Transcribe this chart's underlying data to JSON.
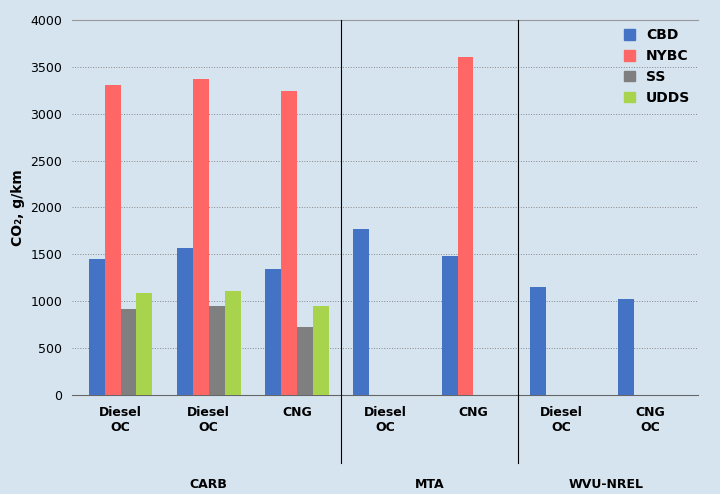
{
  "title": "",
  "ylabel": "CO₂, g/km",
  "ylim": [
    0,
    4000
  ],
  "yticks": [
    0,
    500,
    1000,
    1500,
    2000,
    2500,
    3000,
    3500,
    4000
  ],
  "groups": [
    {
      "label": "Diesel\nOC",
      "group": "CARB"
    },
    {
      "label": "Diesel\nOC",
      "group": "CARB"
    },
    {
      "label": "CNG",
      "group": "CARB"
    },
    {
      "label": "Diesel\nOC",
      "group": "MTA"
    },
    {
      "label": "CNG",
      "group": "MTA"
    },
    {
      "label": "Diesel\nOC",
      "group": "WVU-NREL"
    },
    {
      "label": "CNG\nOC",
      "group": "WVU-NREL"
    }
  ],
  "series": {
    "CBD": [
      1450,
      1570,
      1340,
      1770,
      1480,
      1150,
      1020
    ],
    "NYBC": [
      3300,
      3370,
      3240,
      null,
      3600,
      null,
      null
    ],
    "SS": [
      920,
      950,
      730,
      null,
      null,
      null,
      null
    ],
    "UDDS": [
      1090,
      1110,
      950,
      null,
      null,
      null,
      null
    ]
  },
  "colors": {
    "CBD": "#4472C4",
    "NYBC": "#FF6666",
    "SS": "#7F7F7F",
    "UDDS": "#A8D44D"
  },
  "group_labels": [
    "CARB",
    "MTA",
    "WVU-NREL"
  ],
  "group_spans": {
    "CARB": [
      0,
      2
    ],
    "MTA": [
      3,
      4
    ],
    "WVU-NREL": [
      5,
      6
    ]
  },
  "background_color": "#DDEEFF",
  "grid_color": "#888888",
  "bar_width": 0.18,
  "figsize": [
    7.2,
    4.94
  ],
  "dpi": 100
}
